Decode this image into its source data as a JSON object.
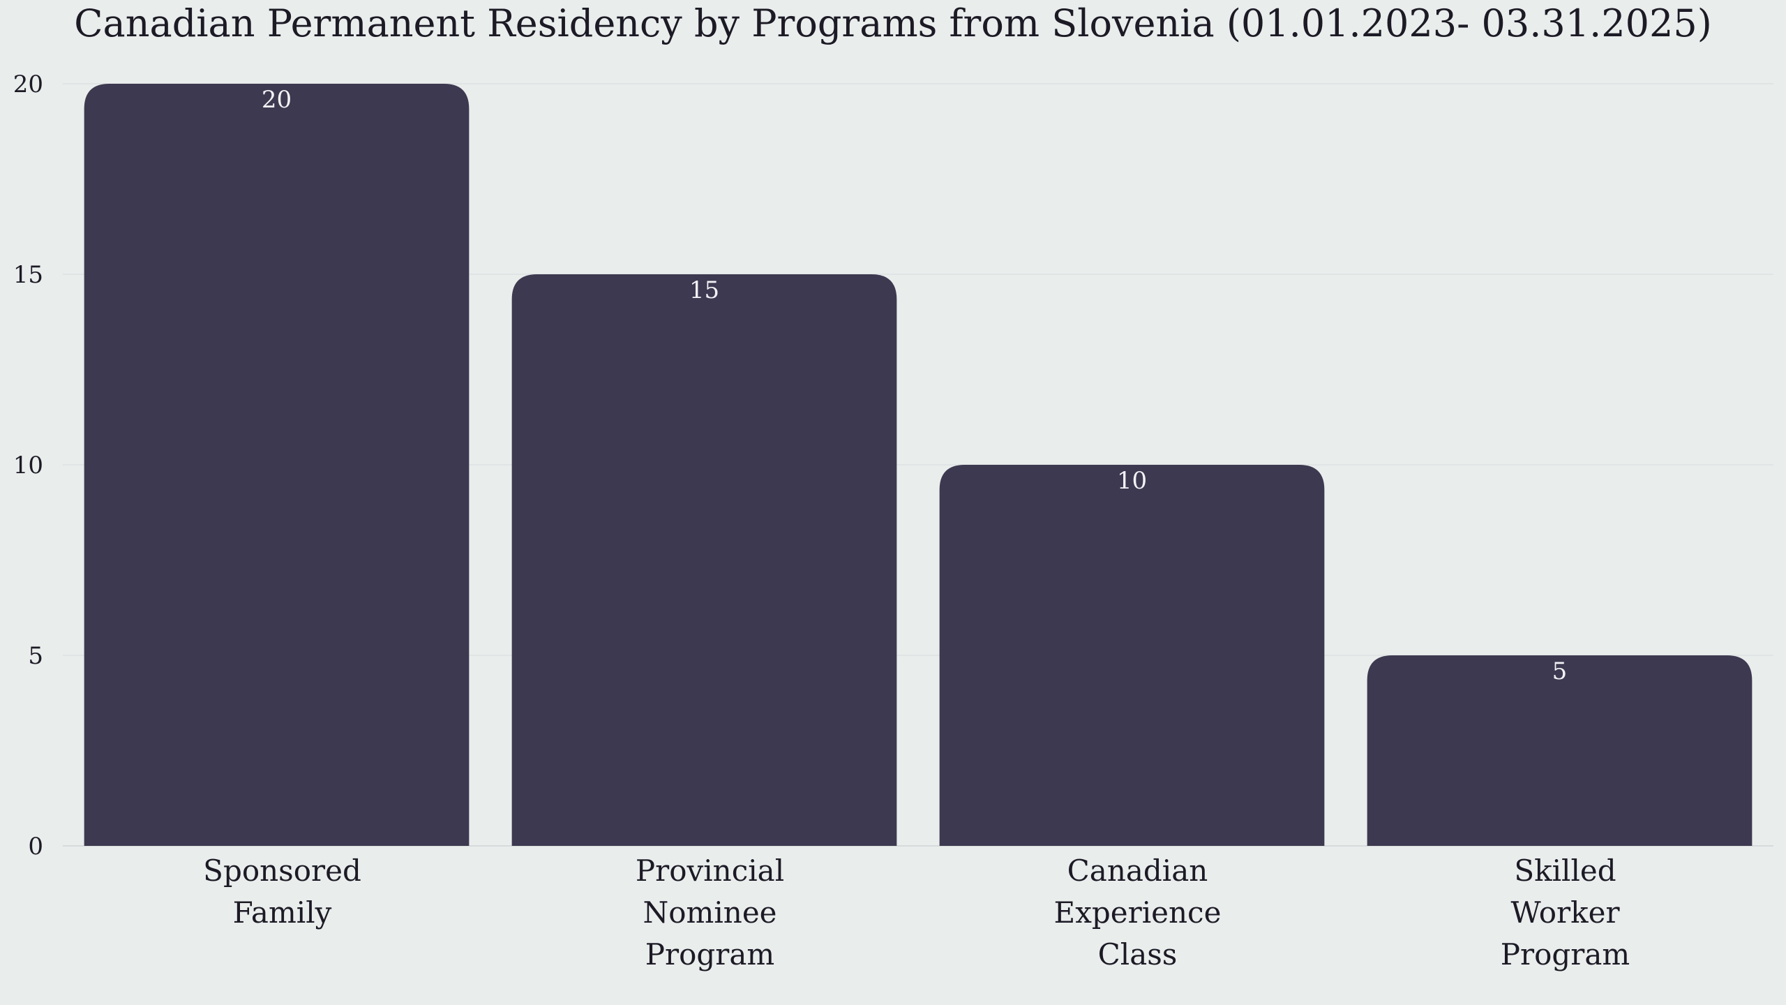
{
  "chart_data": {
    "type": "bar",
    "title": "Canadian Permanent Residency by Programs from Slovenia (01.01.2023- 03.31.2025)",
    "xlabel": "",
    "ylabel": "",
    "categories": [
      [
        "Sponsored",
        "Family"
      ],
      [
        "Provincial",
        "Nominee",
        "Program"
      ],
      [
        "Canadian",
        "Experience",
        "Class"
      ],
      [
        "Skilled",
        "Worker",
        "Program"
      ]
    ],
    "values": [
      20,
      15,
      10,
      5
    ],
    "data_labels": [
      "20",
      "15",
      "10",
      "5"
    ],
    "y_ticks": [
      0,
      5,
      10,
      15,
      20
    ],
    "ylim": [
      0,
      20
    ],
    "grid": true,
    "legend": "none",
    "colors": {
      "bar": "#3d3950",
      "background": "#e9edec",
      "text": "#1c1a25",
      "data_label": "#f2f1f5",
      "grid": "#dde1e1"
    }
  }
}
